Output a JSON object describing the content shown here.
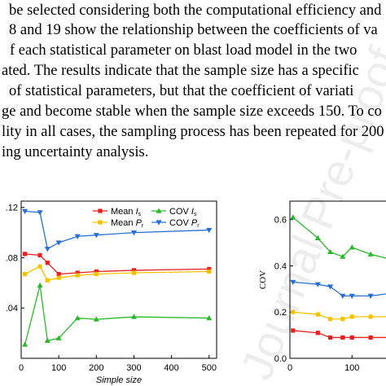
{
  "paragraph": {
    "lines": [
      "be selected considering both the computational efficiency and",
      "8 and 19 show the relationship between the coefficients of va",
      "f each statistical parameter on blast load model in the two",
      "ated. The results indicate that the sample size has a specific",
      "of statistical parameters, but that the coefficient of variati",
      "ge and become stable when the sample size exceeds 150. To co",
      "lity in all cases, the sampling process has been repeated for 200",
      "ing uncertainty analysis."
    ]
  },
  "watermark": {
    "text": "Journal Pre-proof"
  },
  "chart_data": [
    {
      "type": "line",
      "xlabel": "Simple size",
      "ylabel": "",
      "xlim": [
        0,
        520
      ],
      "ylim": [
        0,
        0.125
      ],
      "x_ticks": [
        "0",
        "100",
        "200",
        "300",
        "400",
        "500"
      ],
      "y_ticks": [
        ".04",
        ".08",
        ".12"
      ],
      "legend_position": "top-right",
      "series": [
        {
          "name": "Mean",
          "sub": "s",
          "italic": "I",
          "color": "#e8201f",
          "marker": "square",
          "x": [
            10,
            50,
            70,
            100,
            150,
            200,
            300,
            500
          ],
          "y": [
            0.083,
            0.082,
            0.076,
            0.067,
            0.068,
            0.069,
            0.07,
            0.071
          ]
        },
        {
          "name": "Mean",
          "sub": "r",
          "italic": "P",
          "color": "#f5c200",
          "marker": "square",
          "x": [
            10,
            50,
            70,
            100,
            150,
            200,
            300,
            500
          ],
          "y": [
            0.067,
            0.073,
            0.062,
            0.064,
            0.066,
            0.067,
            0.068,
            0.069
          ]
        },
        {
          "name": "COV",
          "sub": "s",
          "italic": "I",
          "color": "#2bb82b",
          "marker": "triangle-up",
          "x": [
            10,
            50,
            70,
            100,
            150,
            200,
            300,
            500
          ],
          "y": [
            0.011,
            0.058,
            0.014,
            0.016,
            0.032,
            0.031,
            0.033,
            0.032
          ]
        },
        {
          "name": "COV",
          "sub": "r",
          "italic": "P",
          "color": "#2a6fd6",
          "marker": "triangle-down",
          "x": [
            10,
            50,
            70,
            100,
            150,
            200,
            300,
            500
          ],
          "y": [
            0.117,
            0.116,
            0.087,
            0.092,
            0.097,
            0.098,
            0.1,
            0.102
          ]
        }
      ]
    },
    {
      "type": "line",
      "xlabel": "",
      "ylabel": "COV",
      "xlim": [
        0,
        160
      ],
      "ylim": [
        0,
        0.68
      ],
      "x_ticks": [
        "0",
        "100"
      ],
      "y_ticks": [
        "0.0",
        "0.2",
        "0.4",
        "0.6"
      ],
      "series": [
        {
          "color": "#2bb82b",
          "marker": "triangle-up",
          "x": [
            5,
            45,
            65,
            85,
            100,
            130,
            160
          ],
          "y": [
            0.61,
            0.52,
            0.46,
            0.44,
            0.48,
            0.45,
            0.43
          ]
        },
        {
          "color": "#2a6fd6",
          "marker": "triangle-down",
          "x": [
            5,
            45,
            65,
            85,
            100,
            130,
            160
          ],
          "y": [
            0.33,
            0.32,
            0.31,
            0.27,
            0.27,
            0.27,
            0.28
          ]
        },
        {
          "color": "#f5c200",
          "marker": "square",
          "x": [
            5,
            45,
            65,
            85,
            100,
            130,
            160
          ],
          "y": [
            0.2,
            0.19,
            0.17,
            0.17,
            0.18,
            0.18,
            0.18
          ]
        },
        {
          "color": "#e8201f",
          "marker": "square",
          "x": [
            5,
            45,
            65,
            85,
            100,
            130,
            160
          ],
          "y": [
            0.12,
            0.11,
            0.09,
            0.09,
            0.09,
            0.09,
            0.09
          ]
        }
      ]
    }
  ]
}
